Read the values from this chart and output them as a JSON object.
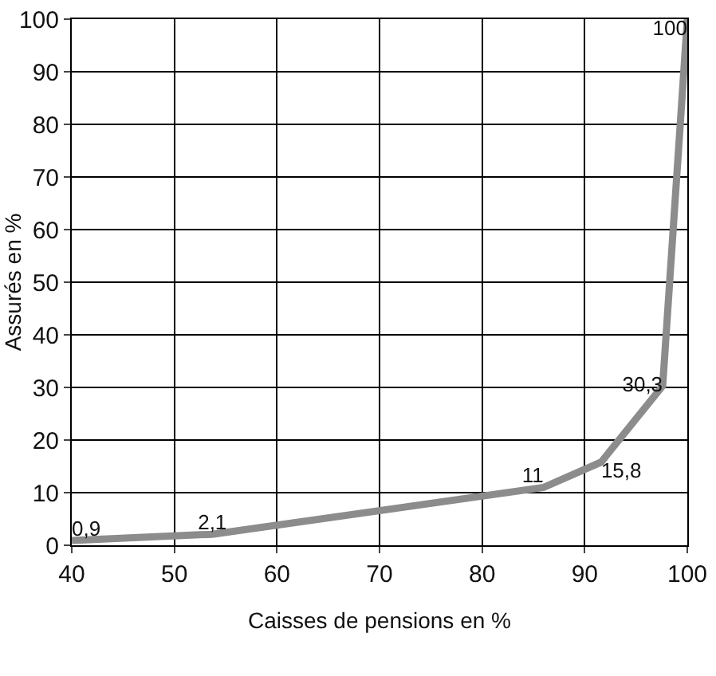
{
  "chart_data": {
    "type": "line",
    "xlabel": "Caisses de pensions en %",
    "ylabel": "Assurés en %",
    "x": [
      40,
      53.7,
      86,
      91.6,
      97.6,
      100
    ],
    "series": [
      {
        "color": "#8c8c8c",
        "values": [
          0.9,
          2.1,
          11,
          15.8,
          30.3,
          100
        ],
        "value_labels": [
          "0,9",
          "2,1",
          "11",
          "15,8",
          "30,3",
          "100"
        ]
      }
    ],
    "xlim": [
      40,
      100
    ],
    "xticks": [
      40,
      50,
      60,
      70,
      80,
      90,
      100
    ],
    "ylim": [
      0,
      100
    ],
    "yticks": [
      0,
      10,
      20,
      30,
      40,
      50,
      60,
      70,
      80,
      90,
      100
    ],
    "grid": true,
    "legend": false,
    "marker": "none",
    "line_style": "solid"
  }
}
